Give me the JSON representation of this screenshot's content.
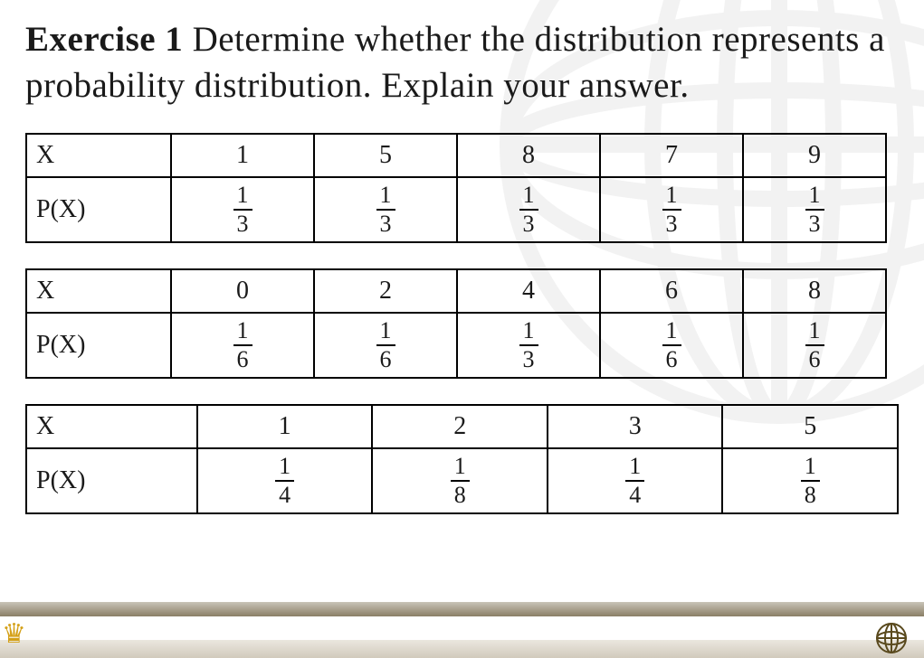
{
  "title": {
    "strong": "Exercise 1",
    "rest": " Determine whether the distribution represents a probability distribution. Explain your answer."
  },
  "tables": [
    {
      "row_header_x": "X",
      "row_header_p": "P(X)",
      "header_col_width": 160,
      "data_col_width": 158,
      "x": [
        "1",
        "5",
        "8",
        "7",
        "9"
      ],
      "p": [
        {
          "n": "1",
          "d": "3"
        },
        {
          "n": "1",
          "d": "3"
        },
        {
          "n": "1",
          "d": "3"
        },
        {
          "n": "1",
          "d": "3"
        },
        {
          "n": "1",
          "d": "3"
        }
      ]
    },
    {
      "row_header_x": "X",
      "row_header_p": "P(X)",
      "header_col_width": 160,
      "data_col_width": 158,
      "x": [
        "0",
        "2",
        "4",
        "6",
        "8"
      ],
      "p": [
        {
          "n": "1",
          "d": "6"
        },
        {
          "n": "1",
          "d": "6"
        },
        {
          "n": "1",
          "d": "3"
        },
        {
          "n": "1",
          "d": "6"
        },
        {
          "n": "1",
          "d": "6"
        }
      ]
    },
    {
      "row_header_x": "X",
      "row_header_p": "P(X)",
      "header_col_width": 190,
      "data_col_width": 195,
      "x": [
        "1",
        "2",
        "3",
        "5"
      ],
      "p": [
        {
          "n": "1",
          "d": "4"
        },
        {
          "n": "1",
          "d": "8"
        },
        {
          "n": "1",
          "d": "4"
        },
        {
          "n": "1",
          "d": "8"
        }
      ]
    }
  ],
  "colors": {
    "text": "#1a1a1a",
    "table_border": "#000000",
    "background": "#ffffff",
    "watermark_stroke": "#6b6b6b",
    "band_light": "#d6cfbf",
    "band_dark": "#8a7f66",
    "crown": "#d4a017",
    "globe": "#5a4a1e"
  }
}
